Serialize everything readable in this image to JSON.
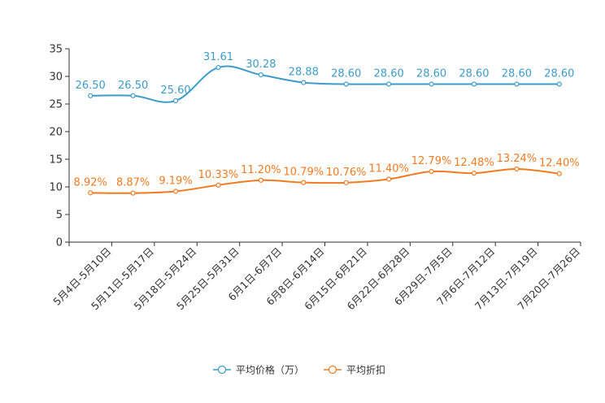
{
  "chart_data": {
    "type": "line",
    "title": "",
    "xlabel": "",
    "ylabel": "",
    "ylim": [
      0,
      35
    ],
    "yticks": [
      0,
      5,
      10,
      15,
      20,
      25,
      30,
      35
    ],
    "categories": [
      "5月4日-5月10日",
      "5月11日-5月17日",
      "5月18日-5月24日",
      "5月25日-5月31日",
      "6月1日-6月7日",
      "6月8日-6月14日",
      "6月15日-6月21日",
      "6月22日-6月28日",
      "6月29日-7月5日",
      "7月6日-7月12日",
      "7月13日-7月19日",
      "7月20日-7月26日"
    ],
    "series": [
      {
        "name": "平均价格（万）",
        "color": "#3b9ccc",
        "values": [
          26.5,
          26.5,
          25.6,
          31.61,
          30.28,
          28.88,
          28.6,
          28.6,
          28.6,
          28.6,
          28.6,
          28.6
        ],
        "labels": [
          "26.50",
          "26.50",
          "25.60",
          "31.61",
          "30.28",
          "28.88",
          "28.60",
          "28.60",
          "28.60",
          "28.60",
          "28.60",
          "28.60"
        ]
      },
      {
        "name": "平均折扣",
        "color": "#f47a20",
        "values": [
          8.92,
          8.87,
          9.19,
          10.33,
          11.2,
          10.79,
          10.76,
          11.4,
          12.79,
          12.48,
          13.24,
          12.4
        ],
        "labels": [
          "8.92%",
          "8.87%",
          "9.19%",
          "10.33%",
          "11.20%",
          "10.79%",
          "10.76%",
          "11.40%",
          "12.79%",
          "12.48%",
          "13.24%",
          "12.40%"
        ]
      }
    ],
    "legend_position": "bottom-center"
  }
}
